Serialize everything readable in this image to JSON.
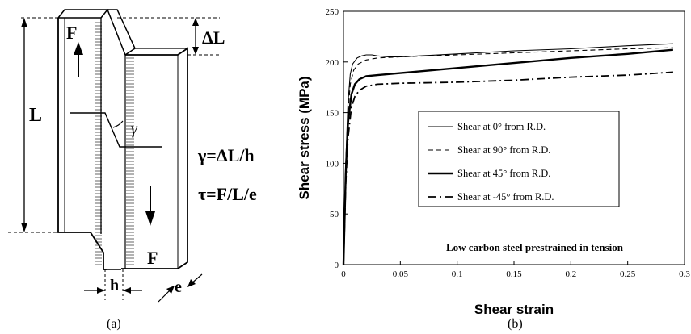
{
  "panel_a": {
    "label_L": "L",
    "label_dL": "ΔL",
    "label_F_top": "F",
    "label_F_bottom": "F",
    "label_gamma": "γ",
    "label_h": "h",
    "label_e": "e",
    "formula_gamma": "γ=ΔL/h",
    "formula_tau": "τ=F/L/e",
    "caption": "(a)"
  },
  "panel_b": {
    "caption": "(b)"
  },
  "chart_data": {
    "type": "line",
    "xlabel": "Shear strain",
    "ylabel": "Shear stress (MPa)",
    "xlim": [
      0,
      0.3
    ],
    "ylim": [
      0,
      250
    ],
    "xticks": [
      0,
      0.05,
      0.1,
      0.15,
      0.2,
      0.25,
      0.3
    ],
    "xtick_labels": [
      "0",
      "0.05",
      "0.1",
      "0.15",
      "0.2",
      "0.25",
      "0.3"
    ],
    "yticks": [
      0,
      50,
      100,
      150,
      200,
      250
    ],
    "ytick_labels": [
      "0",
      "50",
      "100",
      "150",
      "200",
      "250"
    ],
    "grid": false,
    "legend_position": "center-right",
    "annotation": "Low carbon steel prestrained in tension",
    "series": [
      {
        "name": "Shear at 0° from R.D.",
        "style": "thin-solid",
        "x": [
          0,
          0.002,
          0.004,
          0.006,
          0.008,
          0.012,
          0.016,
          0.02,
          0.025,
          0.03,
          0.04,
          0.05,
          0.1,
          0.15,
          0.2,
          0.25,
          0.29
        ],
        "y": [
          0,
          100,
          160,
          188,
          198,
          204,
          206,
          207,
          207,
          206,
          205,
          205,
          208,
          211,
          213,
          216,
          218
        ]
      },
      {
        "name": "Shear at 90° from R.D.",
        "style": "dashed",
        "x": [
          0,
          0.002,
          0.004,
          0.006,
          0.009,
          0.013,
          0.02,
          0.03,
          0.05,
          0.1,
          0.15,
          0.2,
          0.25,
          0.29
        ],
        "y": [
          0,
          95,
          150,
          178,
          192,
          198,
          202,
          204,
          205,
          207,
          209,
          211,
          213,
          214
        ]
      },
      {
        "name": "Shear at 45° from R.D.",
        "style": "thick-solid",
        "x": [
          0,
          0.002,
          0.004,
          0.007,
          0.01,
          0.014,
          0.02,
          0.03,
          0.05,
          0.1,
          0.15,
          0.2,
          0.25,
          0.29
        ],
        "y": [
          0,
          90,
          140,
          168,
          178,
          183,
          186,
          187,
          189,
          194,
          199,
          204,
          208,
          212
        ]
      },
      {
        "name": "Shear at -45° from R.D.",
        "style": "dash-dot",
        "x": [
          0,
          0.002,
          0.004,
          0.007,
          0.01,
          0.014,
          0.02,
          0.03,
          0.05,
          0.1,
          0.15,
          0.2,
          0.25,
          0.29
        ],
        "y": [
          0,
          80,
          125,
          155,
          166,
          172,
          176,
          178,
          179,
          180,
          182,
          185,
          187,
          190
        ]
      }
    ]
  }
}
